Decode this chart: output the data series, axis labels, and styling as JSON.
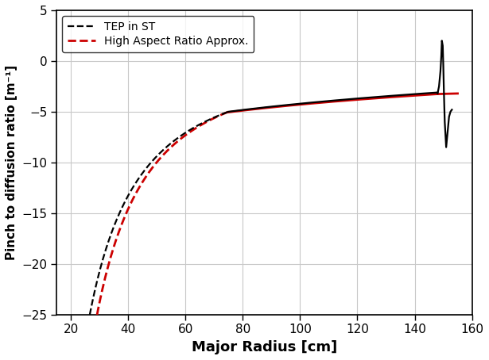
{
  "xlabel": "Major Radius [cm]",
  "ylabel": "Pinch to diffusion ratio [m⁻¹]",
  "xlim": [
    15,
    160
  ],
  "ylim": [
    -25,
    5
  ],
  "xticks": [
    20,
    40,
    60,
    80,
    100,
    120,
    140,
    160
  ],
  "yticks": [
    -25,
    -20,
    -15,
    -10,
    -5,
    0,
    5
  ],
  "legend_black": "TEP in ST",
  "legend_red": "High Aspect Ratio Approx.",
  "black_color": "#000000",
  "red_color": "#cc0000",
  "background_color": "#ffffff",
  "grid_color": "#c8c8c8",
  "black_lw": 1.6,
  "red_lw": 2.0
}
